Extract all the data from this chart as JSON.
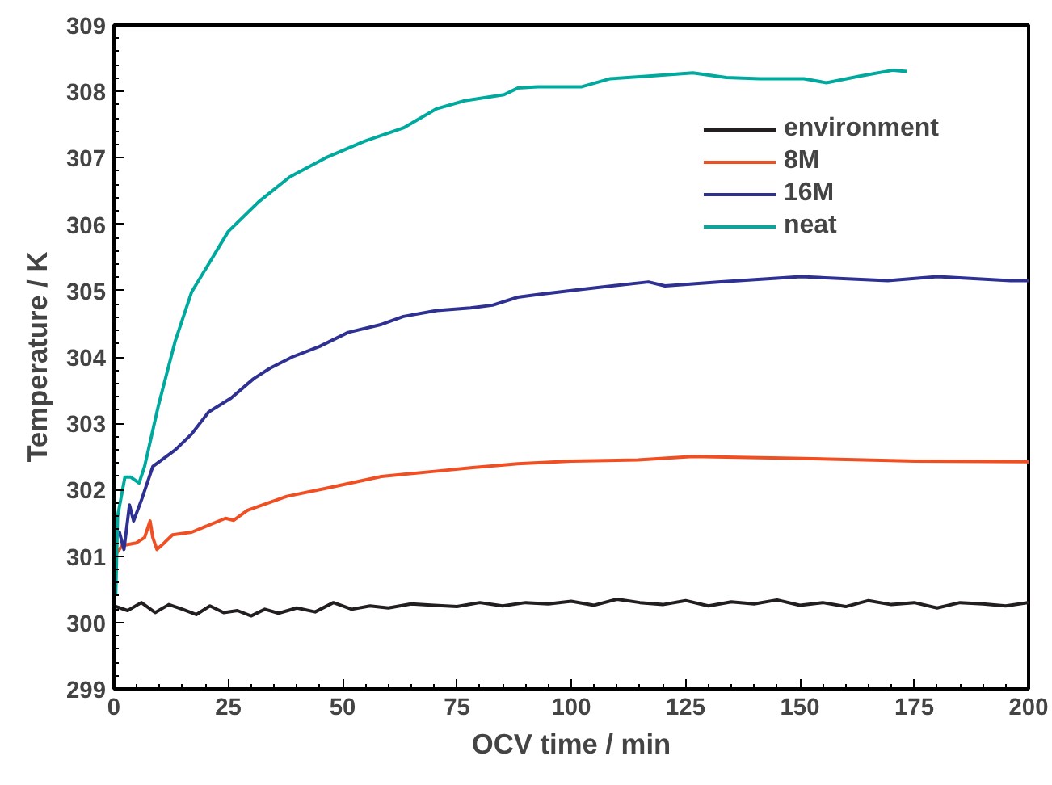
{
  "chart_data": {
    "type": "line",
    "xlabel": "OCV time / min",
    "ylabel": "Temperature / K",
    "xlim": [
      0,
      200
    ],
    "ylim": [
      299,
      309
    ],
    "xticks": [
      0,
      25,
      50,
      75,
      100,
      125,
      150,
      175,
      200
    ],
    "yticks": [
      299,
      300,
      301,
      302,
      303,
      304,
      305,
      306,
      307,
      308,
      309
    ],
    "grid": false,
    "legend": "top right",
    "marker": "none",
    "line_style": "solid",
    "series": [
      {
        "name": "environment",
        "color": "#231f20",
        "x": [
          0,
          3,
          6,
          9,
          12,
          15,
          18,
          21,
          24,
          27,
          30,
          33,
          36,
          40,
          44,
          48,
          52,
          56,
          60,
          65,
          70,
          75,
          80,
          85,
          90,
          95,
          100,
          105,
          110,
          115,
          120,
          125,
          130,
          135,
          140,
          145,
          150,
          155,
          160,
          165,
          170,
          175,
          180,
          185,
          190,
          195,
          200
        ],
        "values": [
          300.25,
          300.18,
          300.3,
          300.15,
          300.27,
          300.2,
          300.12,
          300.25,
          300.15,
          300.18,
          300.1,
          300.2,
          300.14,
          300.22,
          300.16,
          300.3,
          300.2,
          300.25,
          300.22,
          300.28,
          300.26,
          300.24,
          300.3,
          300.25,
          300.3,
          300.28,
          300.32,
          300.26,
          300.35,
          300.3,
          300.27,
          300.33,
          300.25,
          300.31,
          300.28,
          300.34,
          300.26,
          300.3,
          300.24,
          300.33,
          300.27,
          300.3,
          300.22,
          300.3,
          300.28,
          300.25,
          300.3
        ]
      },
      {
        "name": "8M",
        "color": "#f04e23",
        "x": [
          0,
          1.8,
          4.9,
          6.7,
          7.9,
          8.5,
          9.4,
          11,
          12.8,
          17,
          24.4,
          26.2,
          29.2,
          37.8,
          46.3,
          58.5,
          70.6,
          78,
          88.3,
          100,
          114.6,
          126.6,
          150.9,
          175.3,
          200
        ],
        "values": [
          300.99,
          301.16,
          301.2,
          301.28,
          301.53,
          301.28,
          301.1,
          301.2,
          301.32,
          301.36,
          301.57,
          301.54,
          301.69,
          301.9,
          302.02,
          302.2,
          302.28,
          302.33,
          302.39,
          302.43,
          302.45,
          302.5,
          302.47,
          302.43,
          302.42
        ]
      },
      {
        "name": "16M",
        "color": "#2e3192",
        "x": [
          0,
          1.2,
          2.2,
          3.4,
          4.3,
          6.1,
          8.5,
          13.4,
          17,
          20.7,
          25.6,
          30.5,
          34.1,
          39,
          45,
          51.2,
          58.5,
          63.3,
          70.6,
          78,
          82.8,
          88.3,
          92.6,
          102.3,
          116.9,
          120.5,
          132.7,
          150.3,
          169.2,
          180.1,
          196,
          200
        ],
        "values": [
          301.32,
          301.36,
          301.1,
          301.77,
          301.53,
          301.86,
          302.35,
          302.6,
          302.84,
          303.17,
          303.38,
          303.67,
          303.83,
          304.0,
          304.16,
          304.37,
          304.49,
          304.61,
          304.7,
          304.74,
          304.78,
          304.9,
          304.94,
          305.02,
          305.13,
          305.07,
          305.13,
          305.21,
          305.15,
          305.21,
          305.15,
          305.15
        ]
      },
      {
        "name": "neat",
        "color": "#00a99d",
        "x": [
          0.4,
          0.8,
          2.4,
          3.7,
          5.5,
          6.7,
          9.7,
          13.4,
          17,
          20.7,
          25,
          31.7,
          38.4,
          46.3,
          54.8,
          63.3,
          70.6,
          76.7,
          85.3,
          88.3,
          92.6,
          102.3,
          108.4,
          116.9,
          126.6,
          133.9,
          141.2,
          150.9,
          155.8,
          163.1,
          170.4,
          173.4
        ],
        "values": [
          300.42,
          301.6,
          302.19,
          302.19,
          302.1,
          302.35,
          303.26,
          304.24,
          304.98,
          305.4,
          305.89,
          306.34,
          306.71,
          307.0,
          307.25,
          307.45,
          307.74,
          307.86,
          307.95,
          308.05,
          308.07,
          308.07,
          308.19,
          308.23,
          308.28,
          308.21,
          308.19,
          308.19,
          308.13,
          308.23,
          308.32,
          308.3
        ]
      }
    ]
  }
}
